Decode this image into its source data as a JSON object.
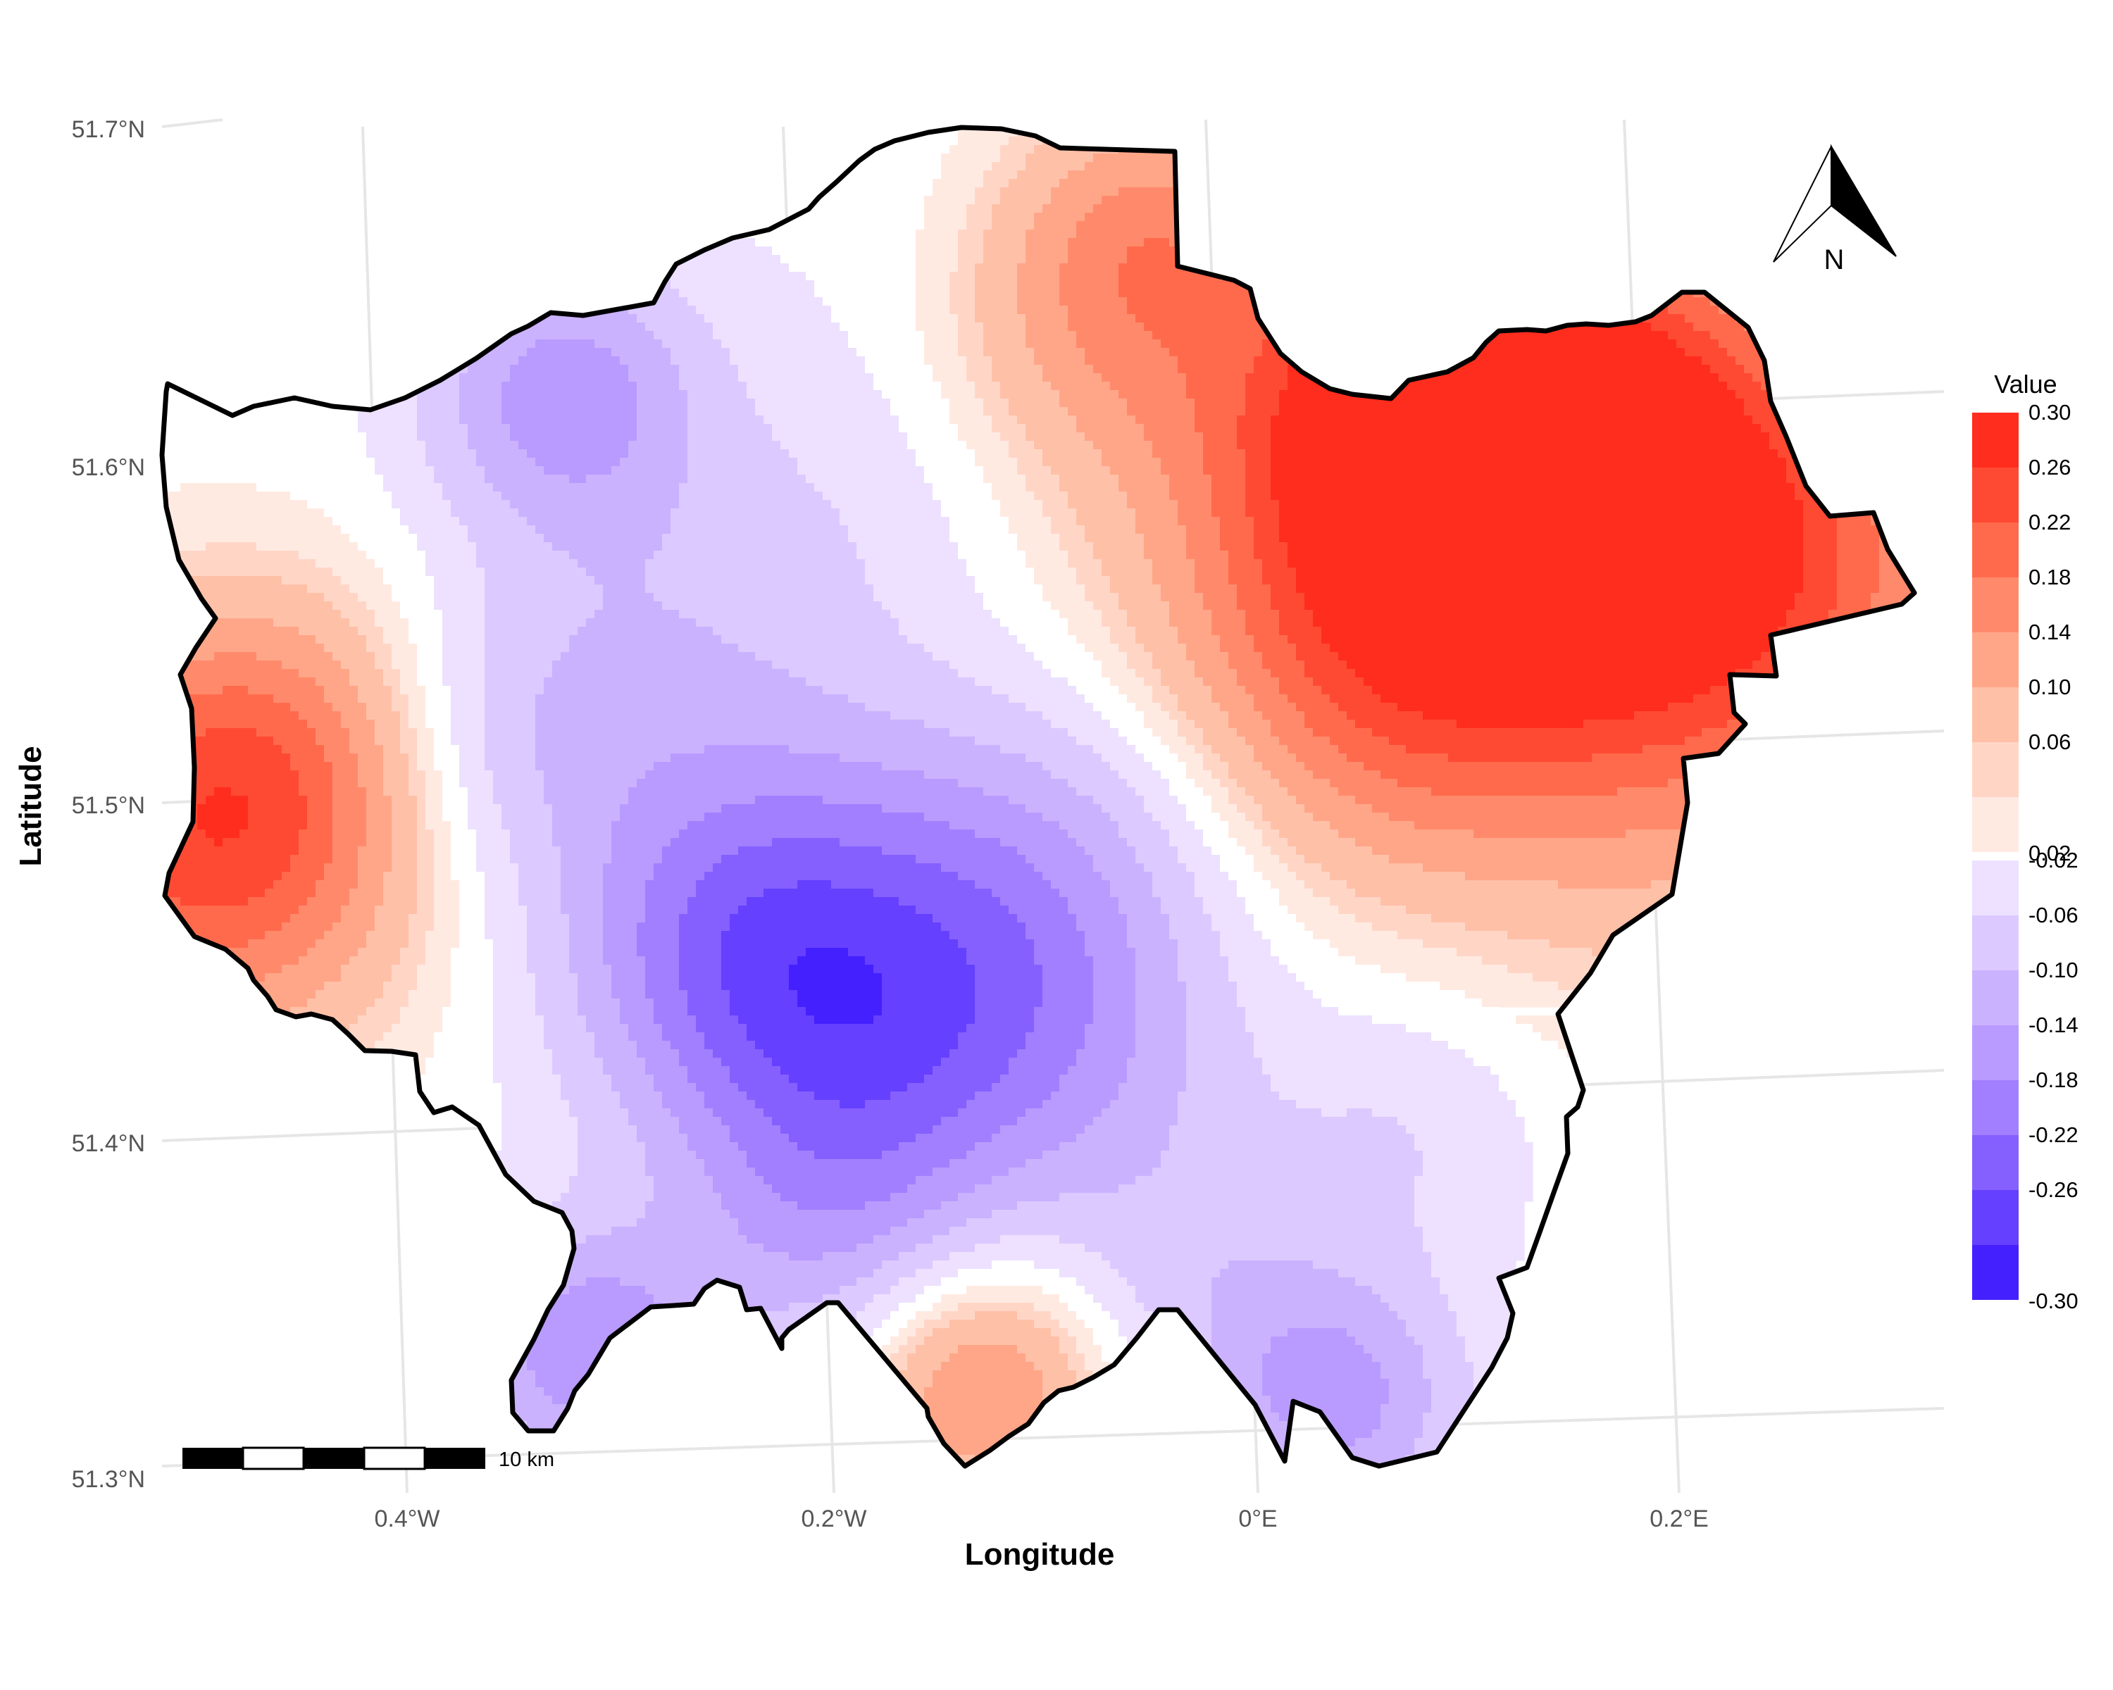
{
  "map": {
    "axes": {
      "x_title": "Longitude",
      "y_title": "Latitude",
      "x_ticks": [
        "0.4°W",
        "0.2°W",
        "0°E",
        "0.2°E"
      ],
      "y_ticks": [
        "51.7°N",
        "51.6°N",
        "51.5°N",
        "51.4°N",
        "51.3°N"
      ]
    },
    "legend": {
      "title": "Value",
      "positive": [
        {
          "label": "0.30",
          "color": "#ff2d1e"
        },
        {
          "label": "0.26",
          "color": "#ff4a33"
        },
        {
          "label": "0.22",
          "color": "#ff6a4d"
        },
        {
          "label": "0.18",
          "color": "#ff8a6b"
        },
        {
          "label": "0.14",
          "color": "#ffa688"
        },
        {
          "label": "0.10",
          "color": "#ffc0a8"
        },
        {
          "label": "0.06",
          "color": "#ffd6c6"
        },
        {
          "label": "0.02",
          "color": "#ffeae2"
        }
      ],
      "negative": [
        {
          "label": "-0.02",
          "color": "#ede1ff"
        },
        {
          "label": "-0.06",
          "color": "#dcc9ff"
        },
        {
          "label": "-0.10",
          "color": "#cbb2ff"
        },
        {
          "label": "-0.14",
          "color": "#b99bff"
        },
        {
          "label": "-0.18",
          "color": "#a17fff"
        },
        {
          "label": "-0.22",
          "color": "#8560ff"
        },
        {
          "label": "-0.26",
          "color": "#6540ff"
        },
        {
          "label": "-0.30",
          "color": "#4420ff"
        }
      ]
    },
    "scale_bar": {
      "label": "10 km"
    },
    "north_arrow": {
      "label": "N"
    },
    "colors": {
      "boundary": "#000000",
      "grid": "#e6e6e6",
      "neutral": "#ffffff"
    }
  }
}
